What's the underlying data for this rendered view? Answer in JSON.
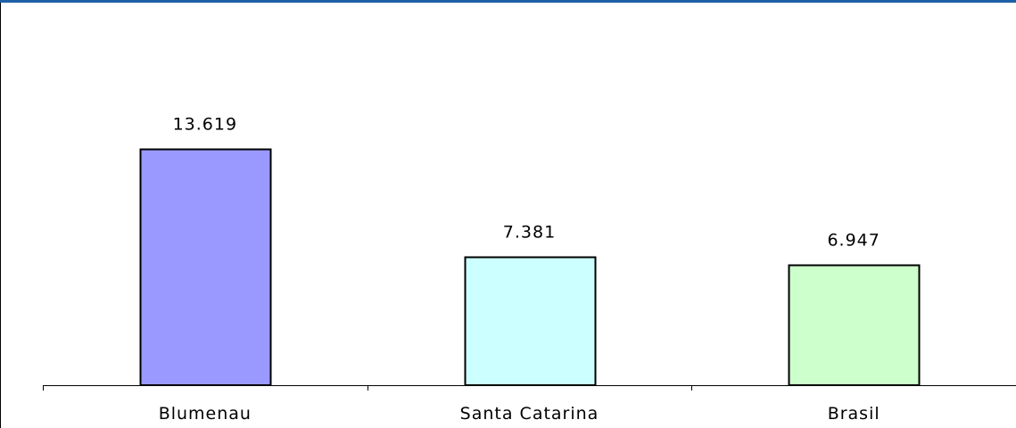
{
  "chart_data": {
    "type": "bar",
    "categories": [
      "Blumenau",
      "Santa Catarina",
      "Brasil"
    ],
    "values": [
      13.619,
      7.381,
      6.947
    ],
    "value_labels": [
      "13.619",
      "7.381",
      "6.947"
    ],
    "title": "",
    "xlabel": "",
    "ylabel": "",
    "ylim": [
      0,
      16
    ],
    "grid": false,
    "legend": "none",
    "colors": [
      "#9999ff",
      "#ccffff",
      "#ccffcc"
    ],
    "bar_outline": "#000000",
    "frame_top_color": "#1f5fa8"
  }
}
